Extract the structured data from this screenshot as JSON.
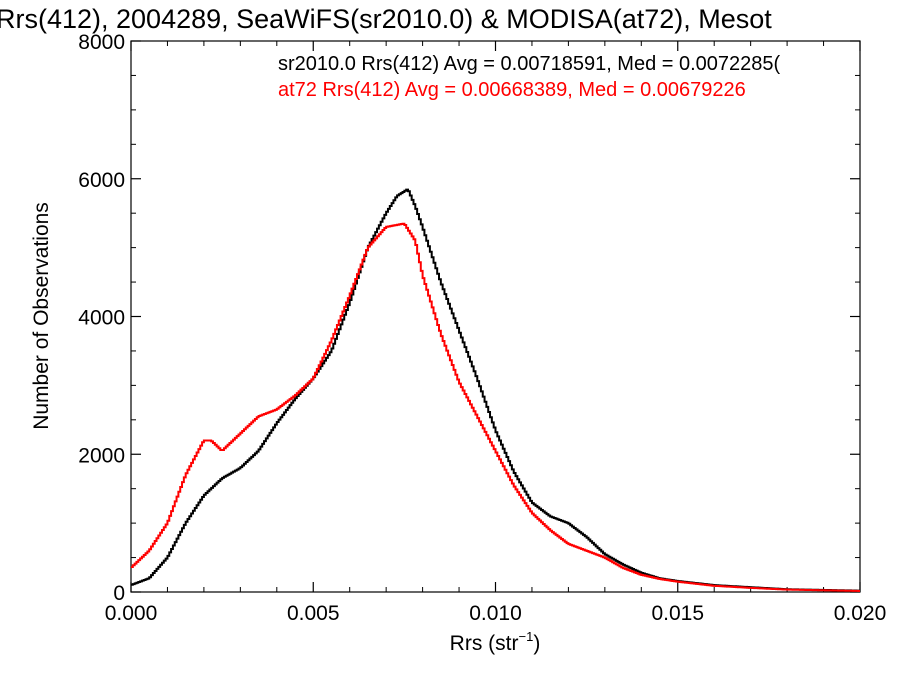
{
  "chart_data": {
    "type": "line",
    "title": "Rrs(412), 2004289, SeaWiFS(sr2010.0) & MODISA(at72), Mesot",
    "xlabel_main": "Rrs (str",
    "xlabel_sup": "−1",
    "xlabel_tail": ")",
    "ylabel": "Number of Observations",
    "xlim": [
      0.0,
      0.02
    ],
    "ylim": [
      0,
      8000
    ],
    "xticks": [
      "0.000",
      "0.005",
      "0.010",
      "0.015",
      "0.020"
    ],
    "yticks": [
      "0",
      "2000",
      "4000",
      "6000",
      "8000"
    ],
    "legend_position": "top",
    "annotations": [
      "sr2010.0 Rrs(412) Avg = 0.00718591, Med = 0.0072285(",
      "at72 Rrs(412) Avg = 0.00668389, Med = 0.00679226"
    ],
    "series": [
      {
        "color": "#000000",
        "x": [
          0.0,
          0.0005,
          0.001,
          0.0015,
          0.002,
          0.0025,
          0.003,
          0.0035,
          0.004,
          0.0045,
          0.005,
          0.0055,
          0.006,
          0.0065,
          0.007,
          0.0073,
          0.0076,
          0.0078,
          0.008,
          0.0085,
          0.009,
          0.0095,
          0.01,
          0.0105,
          0.011,
          0.0115,
          0.012,
          0.0125,
          0.013,
          0.0135,
          0.014,
          0.0145,
          0.015,
          0.016,
          0.017,
          0.018,
          0.019,
          0.02
        ],
        "y": [
          100,
          200,
          500,
          1000,
          1400,
          1650,
          1800,
          2050,
          2450,
          2800,
          3100,
          3500,
          4200,
          5000,
          5500,
          5750,
          5850,
          5600,
          5300,
          4500,
          3800,
          3100,
          2350,
          1750,
          1300,
          1100,
          1000,
          800,
          550,
          400,
          280,
          200,
          160,
          100,
          70,
          40,
          30,
          20
        ]
      },
      {
        "color": "#ff0000",
        "x": [
          0.0,
          0.0005,
          0.001,
          0.0015,
          0.002,
          0.0022,
          0.0025,
          0.003,
          0.0035,
          0.004,
          0.0045,
          0.005,
          0.0055,
          0.006,
          0.0065,
          0.007,
          0.0075,
          0.0078,
          0.008,
          0.0085,
          0.009,
          0.0095,
          0.01,
          0.0105,
          0.011,
          0.0115,
          0.012,
          0.0125,
          0.013,
          0.0135,
          0.014,
          0.0145,
          0.015,
          0.016,
          0.017,
          0.018,
          0.019,
          0.02
        ],
        "y": [
          350,
          600,
          1000,
          1700,
          2200,
          2200,
          2050,
          2300,
          2550,
          2650,
          2850,
          3100,
          3650,
          4300,
          5000,
          5300,
          5350,
          5100,
          4600,
          3750,
          3050,
          2550,
          2050,
          1550,
          1150,
          900,
          700,
          600,
          500,
          350,
          250,
          190,
          150,
          90,
          60,
          35,
          25,
          15
        ]
      }
    ]
  }
}
